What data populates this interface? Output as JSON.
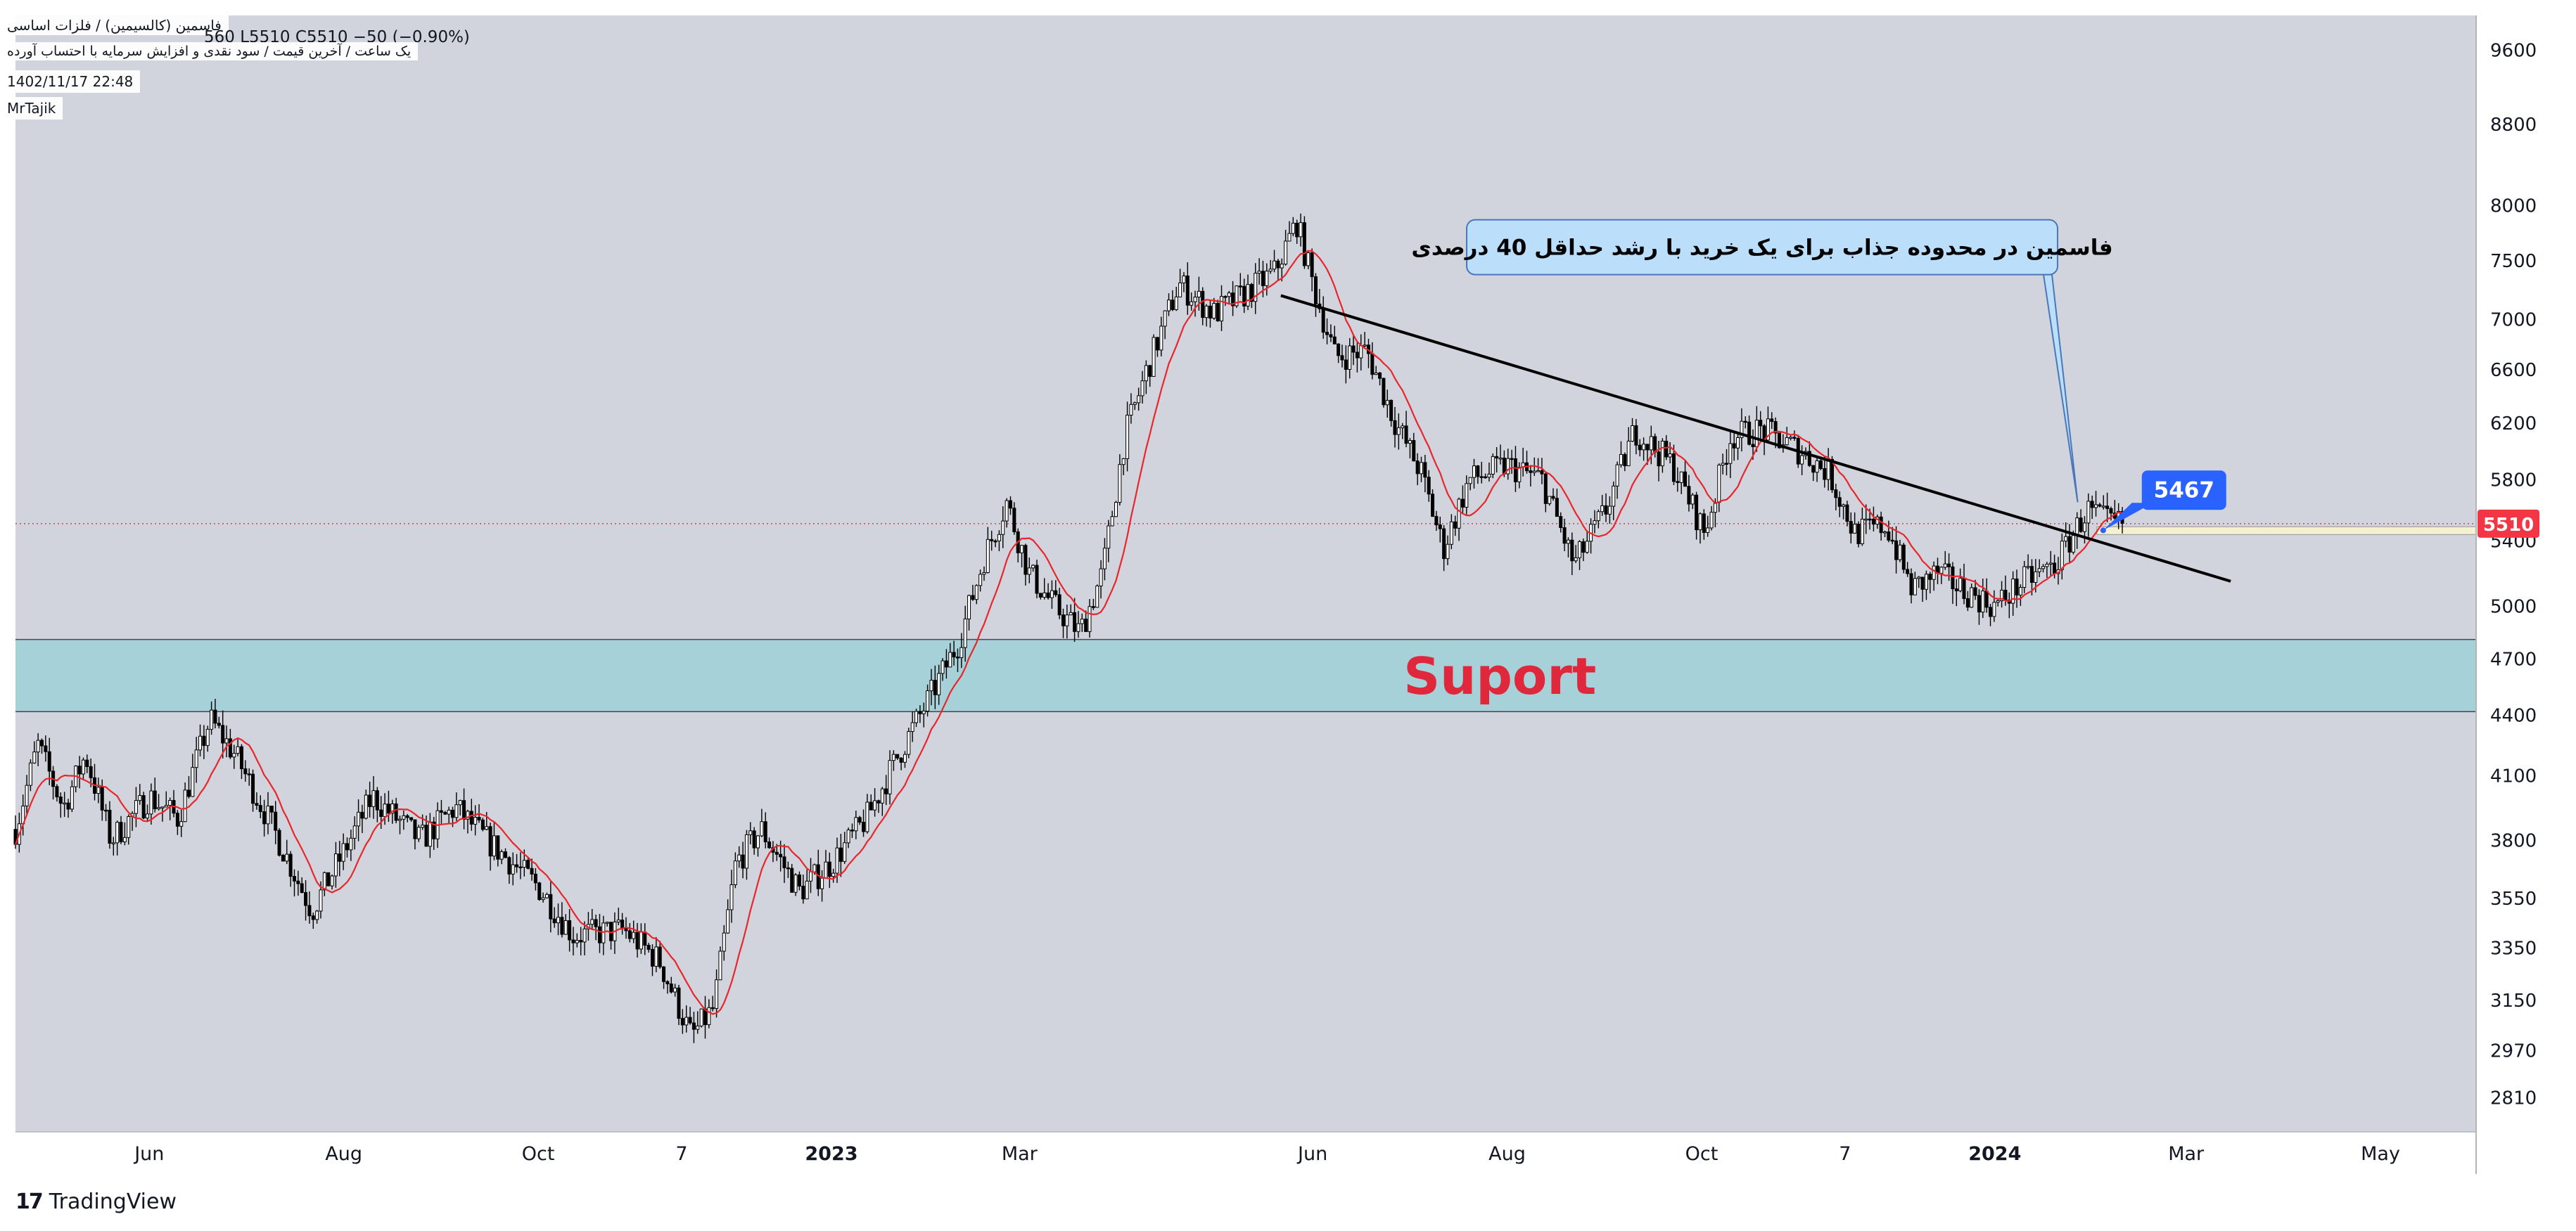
{
  "header": {
    "title": "فاسمین (کالسیمین) / فلزات اساسی",
    "ohlc": "560  L5510  C5510  −50 (−0.90%)",
    "subtitle": "یک ساعت / آخرین قیمت / سود نقدی و افزایش سرمایه با احتساب آورده",
    "datetime": "1402/11/17 22:48",
    "author": "MrTajik"
  },
  "watermark": {
    "text": "TradingView",
    "logo_icon": "tradingview-logo-icon"
  },
  "colors": {
    "plot_bg": "#d1d4dc",
    "candle": "#000000",
    "ma_line": "#e8262b",
    "support_zone": "#a7d1d9",
    "support_text": "#e0283d",
    "price_badge": "#f23645",
    "label_5467": "#2962ff",
    "callout_bg": "#bbdefb",
    "callout_border": "#4a77b9"
  },
  "chart_data": {
    "type": "candlestick",
    "x_range": [
      "2022-04-20",
      "2024-05-31"
    ],
    "x_tick_labels": [
      {
        "date": "2022-06-01",
        "label": "Jun",
        "bold": false
      },
      {
        "date": "2022-08-01",
        "label": "Aug",
        "bold": false
      },
      {
        "date": "2022-10-01",
        "label": "Oct",
        "bold": false
      },
      {
        "date": "2022-11-15",
        "label": "7",
        "bold": false
      },
      {
        "date": "2023-01-01",
        "label": "2023",
        "bold": true
      },
      {
        "date": "2023-03-01",
        "label": "Mar",
        "bold": false
      },
      {
        "date": "2023-06-01",
        "label": "Jun",
        "bold": false
      },
      {
        "date": "2023-08-01",
        "label": "Aug",
        "bold": false
      },
      {
        "date": "2023-10-01",
        "label": "Oct",
        "bold": false
      },
      {
        "date": "2023-11-15",
        "label": "7",
        "bold": false
      },
      {
        "date": "2024-01-01",
        "label": "2024",
        "bold": true
      },
      {
        "date": "2024-03-01",
        "label": "Mar",
        "bold": false
      },
      {
        "date": "2024-05-01",
        "label": "May",
        "bold": false
      }
    ],
    "y_axis": {
      "scale": "log",
      "range": [
        2700,
        10000
      ]
    },
    "y_tick_labels": [
      9600,
      8800,
      8000,
      7500,
      7000,
      6600,
      6200,
      5800,
      5400,
      5000,
      4700,
      4400,
      4100,
      3800,
      3550,
      3350,
      3150,
      2970,
      2810
    ],
    "close_path": [
      {
        "date": "2022-04-20",
        "value": 3850
      },
      {
        "date": "2022-04-27",
        "value": 4250
      },
      {
        "date": "2022-05-05",
        "value": 3950
      },
      {
        "date": "2022-05-12",
        "value": 4200
      },
      {
        "date": "2022-05-20",
        "value": 3800
      },
      {
        "date": "2022-06-01",
        "value": 4000
      },
      {
        "date": "2022-06-10",
        "value": 3900
      },
      {
        "date": "2022-06-20",
        "value": 4380
      },
      {
        "date": "2022-06-28",
        "value": 4200
      },
      {
        "date": "2022-07-10",
        "value": 3850
      },
      {
        "date": "2022-07-22",
        "value": 3500
      },
      {
        "date": "2022-08-01",
        "value": 3750
      },
      {
        "date": "2022-08-10",
        "value": 4000
      },
      {
        "date": "2022-08-25",
        "value": 3800
      },
      {
        "date": "2022-09-05",
        "value": 3950
      },
      {
        "date": "2022-09-15",
        "value": 3800
      },
      {
        "date": "2022-10-01",
        "value": 3600
      },
      {
        "date": "2022-10-12",
        "value": 3400
      },
      {
        "date": "2022-10-28",
        "value": 3420
      },
      {
        "date": "2022-11-08",
        "value": 3300
      },
      {
        "date": "2022-11-18",
        "value": 3020
      },
      {
        "date": "2022-11-25",
        "value": 3120
      },
      {
        "date": "2022-12-02",
        "value": 3700
      },
      {
        "date": "2022-12-10",
        "value": 3850
      },
      {
        "date": "2022-12-22",
        "value": 3580
      },
      {
        "date": "2023-01-01",
        "value": 3700
      },
      {
        "date": "2023-01-12",
        "value": 3900
      },
      {
        "date": "2023-01-22",
        "value": 4200
      },
      {
        "date": "2023-02-01",
        "value": 4500
      },
      {
        "date": "2023-02-10",
        "value": 4800
      },
      {
        "date": "2023-02-18",
        "value": 5300
      },
      {
        "date": "2023-02-25",
        "value": 5650
      },
      {
        "date": "2023-03-04",
        "value": 5200
      },
      {
        "date": "2023-03-12",
        "value": 5000
      },
      {
        "date": "2023-03-20",
        "value": 4850
      },
      {
        "date": "2023-03-27",
        "value": 5200
      },
      {
        "date": "2023-04-03",
        "value": 6100
      },
      {
        "date": "2023-04-10",
        "value": 6600
      },
      {
        "date": "2023-04-20",
        "value": 7300
      },
      {
        "date": "2023-05-01",
        "value": 7050
      },
      {
        "date": "2023-05-10",
        "value": 7200
      },
      {
        "date": "2023-05-20",
        "value": 7400
      },
      {
        "date": "2023-05-27",
        "value": 7850
      },
      {
        "date": "2023-06-01",
        "value": 7300
      },
      {
        "date": "2023-06-08",
        "value": 6700
      },
      {
        "date": "2023-06-18",
        "value": 6750
      },
      {
        "date": "2023-06-27",
        "value": 6200
      },
      {
        "date": "2023-07-05",
        "value": 5850
      },
      {
        "date": "2023-07-12",
        "value": 5350
      },
      {
        "date": "2023-07-20",
        "value": 5800
      },
      {
        "date": "2023-08-01",
        "value": 5900
      },
      {
        "date": "2023-08-12",
        "value": 5800
      },
      {
        "date": "2023-08-22",
        "value": 5250
      },
      {
        "date": "2023-09-01",
        "value": 5600
      },
      {
        "date": "2023-09-10",
        "value": 6150
      },
      {
        "date": "2023-09-22",
        "value": 5900
      },
      {
        "date": "2023-10-02",
        "value": 5450
      },
      {
        "date": "2023-10-10",
        "value": 6100
      },
      {
        "date": "2023-10-20",
        "value": 6150
      },
      {
        "date": "2023-11-01",
        "value": 6000
      },
      {
        "date": "2023-11-10",
        "value": 5850
      },
      {
        "date": "2023-11-18",
        "value": 5450
      },
      {
        "date": "2023-11-28",
        "value": 5500
      },
      {
        "date": "2023-12-06",
        "value": 5100
      },
      {
        "date": "2023-12-14",
        "value": 5200
      },
      {
        "date": "2023-12-22",
        "value": 5100
      },
      {
        "date": "2024-01-01",
        "value": 5000
      },
      {
        "date": "2024-01-10",
        "value": 5150
      },
      {
        "date": "2024-01-20",
        "value": 5250
      },
      {
        "date": "2024-01-30",
        "value": 5600
      },
      {
        "date": "2024-02-05",
        "value": 5520
      },
      {
        "date": "2024-02-10",
        "value": 5510
      }
    ],
    "support_zone": {
      "low": 4420,
      "high": 4810,
      "label": "Suport",
      "from": "2022-04-20",
      "to": "2024-05-31"
    },
    "trendline": {
      "points": [
        {
          "date": "2023-05-22",
          "value": 7200
        },
        {
          "date": "2024-03-15",
          "value": 5150
        }
      ]
    },
    "last_price": {
      "value": 5510,
      "label": "5510"
    },
    "price_label": {
      "date": "2024-02-17",
      "value": 5740,
      "label": "5467",
      "anchor_value": 5467
    },
    "thin_band": {
      "low": 5440,
      "high": 5490,
      "from": "2024-02-02",
      "to": "2024-05-31"
    },
    "callout": {
      "text": "فاسمین در محدوده جذاب برای  یک خرید با رشد حداقل 40 درصدی",
      "date": "2023-10-20",
      "value": 7620,
      "pointer_date": "2024-01-27",
      "pointer_value": 5650
    }
  }
}
